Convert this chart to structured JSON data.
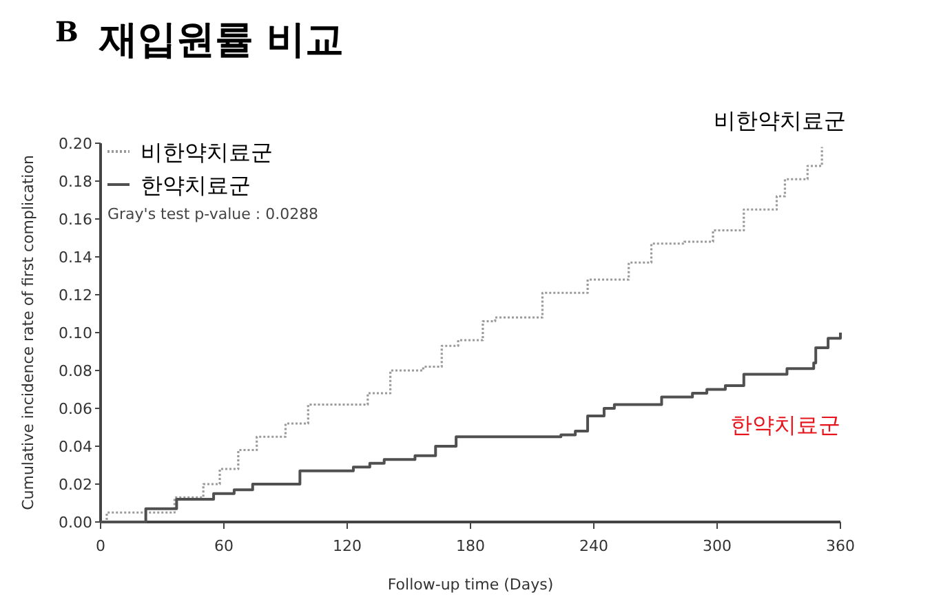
{
  "chart_data": {
    "type": "step",
    "title": "재입원률 비교",
    "xlabel": "Follow-up time (Days)",
    "ylabel": "Cumulative incidence rate of first complication",
    "annotations": [
      "B",
      "Gray's test p-value : 0.0288",
      "비한약치료군",
      "한약치료군"
    ],
    "series": [
      {
        "name": "비한약치료군",
        "color": "#9a9a9a",
        "line_style": "dotted",
        "x": [
          0,
          3,
          18,
          36,
          50,
          58,
          67,
          76,
          90,
          101,
          119,
          130,
          141,
          157,
          166,
          174,
          186,
          192,
          206,
          215,
          237,
          257,
          268,
          284,
          298,
          313,
          329,
          333,
          344,
          351
        ],
        "values": [
          0,
          0.005,
          0.005,
          0.013,
          0.02,
          0.028,
          0.038,
          0.045,
          0.052,
          0.062,
          0.062,
          0.068,
          0.08,
          0.082,
          0.093,
          0.096,
          0.106,
          0.108,
          0.108,
          0.121,
          0.128,
          0.137,
          0.147,
          0.148,
          0.154,
          0.165,
          0.172,
          0.181,
          0.188,
          0.198
        ]
      },
      {
        "name": "한약치료군",
        "color": "#505050",
        "line_style": "solid",
        "x": [
          0,
          22,
          37,
          55,
          65,
          74,
          97,
          123,
          131,
          138,
          153,
          163,
          173,
          224,
          231,
          237,
          245,
          250,
          273,
          288,
          295,
          304,
          313,
          334,
          347,
          348,
          354,
          360
        ],
        "values": [
          0,
          0.007,
          0.012,
          0.015,
          0.017,
          0.02,
          0.027,
          0.029,
          0.031,
          0.033,
          0.035,
          0.04,
          0.045,
          0.046,
          0.048,
          0.056,
          0.06,
          0.062,
          0.066,
          0.068,
          0.07,
          0.072,
          0.078,
          0.081,
          0.084,
          0.092,
          0.097,
          0.1
        ]
      }
    ],
    "xlim": [
      0,
      360
    ],
    "xticks": [
      0,
      60,
      120,
      180,
      240,
      300,
      360
    ],
    "ylim": [
      0,
      0.2
    ],
    "yticks": [
      {
        "value": 0,
        "label": "0.00"
      },
      {
        "value": 0.02,
        "label": "0.02"
      },
      {
        "value": 0.04,
        "label": "0.04"
      },
      {
        "value": 0.06,
        "label": "0.06"
      },
      {
        "value": 0.08,
        "label": "0.08"
      },
      {
        "value": 0.1,
        "label": "0.10"
      },
      {
        "value": 0.12,
        "label": "0.12"
      },
      {
        "value": 0.14,
        "label": "0.14"
      },
      {
        "value": 0.16,
        "label": "0.16"
      },
      {
        "value": 0.18,
        "label": "0.18"
      },
      {
        "value": 0.2,
        "label": "0.20"
      }
    ],
    "legend": "top left"
  }
}
